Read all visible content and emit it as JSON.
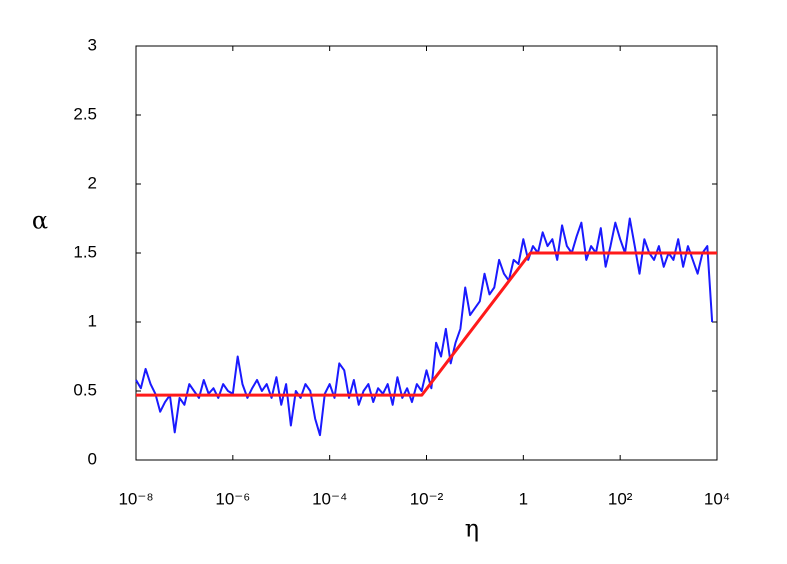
{
  "chart_data": {
    "type": "line",
    "xlabel": "η",
    "ylabel": "α",
    "xlog": true,
    "xlim": [
      1e-08,
      10000.0
    ],
    "ylim": [
      0,
      3
    ],
    "xticks": [
      {
        "value": 1e-08,
        "label": "10⁻⁸"
      },
      {
        "value": 1e-06,
        "label": "10⁻⁶"
      },
      {
        "value": 0.0001,
        "label": "10⁻⁴"
      },
      {
        "value": 0.01,
        "label": "10⁻²"
      },
      1,
      {
        "value": 100,
        "label": "10²"
      },
      {
        "value": 10000,
        "label": "10⁴"
      }
    ],
    "yticks": [
      0,
      0.5,
      1,
      1.5,
      2,
      2.5,
      3
    ],
    "grid": false,
    "series": [
      {
        "color": "#1a1aff",
        "x": [
          1e-08,
          1.26e-08,
          1.58e-08,
          2e-08,
          2.51e-08,
          3.16e-08,
          3.98e-08,
          5.01e-08,
          6.31e-08,
          7.94e-08,
          1e-07,
          1.26e-07,
          1.58e-07,
          2e-07,
          2.51e-07,
          3.16e-07,
          3.98e-07,
          5.01e-07,
          6.31e-07,
          7.94e-07,
          1e-06,
          1.26e-06,
          1.58e-06,
          2e-06,
          2.51e-06,
          3.16e-06,
          3.98e-06,
          5.01e-06,
          6.31e-06,
          7.94e-06,
          1e-05,
          1.26e-05,
          1.58e-05,
          2e-05,
          2.51e-05,
          3.16e-05,
          3.98e-05,
          5.01e-05,
          6.31e-05,
          7.94e-05,
          0.0001,
          0.000126,
          0.000158,
          0.0002,
          0.000251,
          0.000316,
          0.000398,
          0.000501,
          0.000631,
          0.000794,
          0.001,
          0.00126,
          0.00158,
          0.002,
          0.00251,
          0.00316,
          0.00398,
          0.00501,
          0.00631,
          0.00794,
          0.01,
          0.0126,
          0.0158,
          0.02,
          0.0251,
          0.0316,
          0.0398,
          0.0501,
          0.0631,
          0.0794,
          0.1,
          0.126,
          0.158,
          0.2,
          0.251,
          0.316,
          0.398,
          0.501,
          0.631,
          0.794,
          1,
          1.26,
          1.58,
          2,
          2.51,
          3.16,
          3.98,
          5.01,
          6.31,
          7.94,
          10,
          12.6,
          15.8,
          20,
          25.1,
          31.6,
          39.8,
          50.1,
          63.1,
          79.4,
          100,
          126,
          158,
          200,
          251,
          316,
          398,
          501,
          631,
          794,
          1000,
          1260,
          1580,
          2000,
          2510,
          3160,
          3980,
          5010,
          6310,
          7940
        ],
        "values": [
          0.58,
          0.52,
          0.66,
          0.55,
          0.48,
          0.35,
          0.42,
          0.47,
          0.2,
          0.45,
          0.4,
          0.55,
          0.5,
          0.45,
          0.58,
          0.48,
          0.52,
          0.45,
          0.55,
          0.5,
          0.48,
          0.75,
          0.55,
          0.45,
          0.52,
          0.58,
          0.5,
          0.55,
          0.45,
          0.6,
          0.4,
          0.55,
          0.25,
          0.5,
          0.45,
          0.55,
          0.5,
          0.3,
          0.18,
          0.48,
          0.55,
          0.45,
          0.7,
          0.65,
          0.45,
          0.58,
          0.4,
          0.5,
          0.55,
          0.42,
          0.52,
          0.48,
          0.55,
          0.4,
          0.6,
          0.45,
          0.52,
          0.42,
          0.55,
          0.5,
          0.65,
          0.52,
          0.85,
          0.75,
          0.95,
          0.7,
          0.85,
          0.95,
          1.25,
          1.05,
          1.1,
          1.15,
          1.35,
          1.2,
          1.25,
          1.45,
          1.35,
          1.3,
          1.45,
          1.42,
          1.6,
          1.45,
          1.55,
          1.5,
          1.65,
          1.55,
          1.6,
          1.45,
          1.7,
          1.55,
          1.5,
          1.62,
          1.72,
          1.45,
          1.55,
          1.5,
          1.68,
          1.4,
          1.55,
          1.72,
          1.6,
          1.5,
          1.75,
          1.55,
          1.35,
          1.6,
          1.5,
          1.45,
          1.55,
          1.4,
          1.5,
          1.45,
          1.6,
          1.4,
          1.55,
          1.45,
          1.35,
          1.5,
          1.55,
          1.0
        ]
      },
      {
        "color": "#ff1a1a",
        "x": [
          1e-08,
          0.008,
          1.4,
          10000.0
        ],
        "values": [
          0.47,
          0.47,
          1.5,
          1.5
        ]
      }
    ]
  }
}
